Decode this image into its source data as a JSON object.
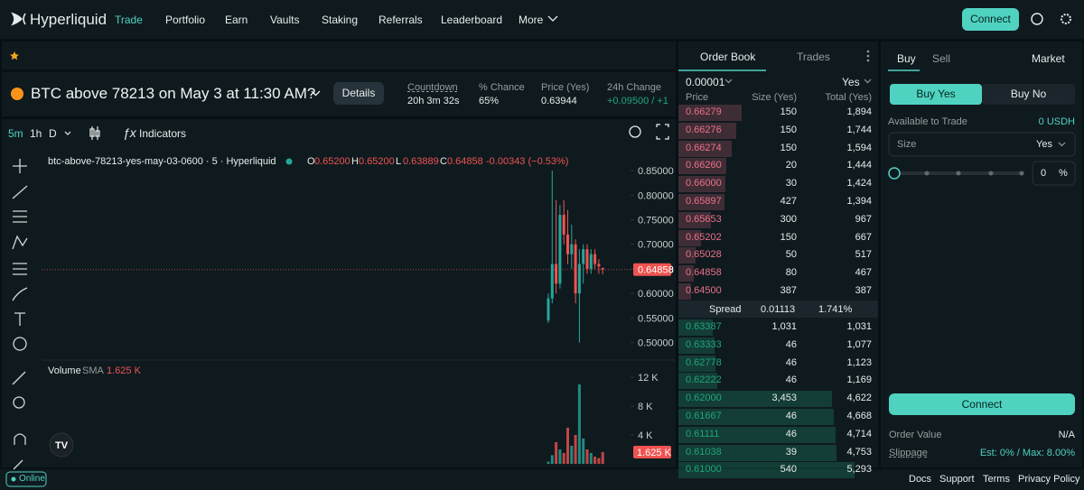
{
  "nav": {
    "logo": "Hyperliquid",
    "links": [
      "Trade",
      "Portfolio",
      "Earn",
      "Vaults",
      "Staking",
      "Referrals",
      "Leaderboard",
      "More"
    ],
    "connect": "Connect"
  },
  "market": {
    "title": "BTC above 78213 on May 3 at 11:30 AM?",
    "details": "Details",
    "stats": [
      {
        "label": "Countdown",
        "value": "20h 3m 32s"
      },
      {
        "label": "% Chance",
        "value": "65%"
      },
      {
        "label": "Price (Yes)",
        "value": "0.63944"
      },
      {
        "label": "24h Change",
        "value": "+0.09500 / +1"
      }
    ]
  },
  "toolbar": {
    "intervals": [
      "5m",
      "1h",
      "D"
    ],
    "indicators": "Indicators"
  },
  "chart_data": {
    "type": "candlestick",
    "title": "btc-above-78213-yes-may-03-0600 · 5 · Hyperliquid",
    "ohlc": [
      {
        "key": "O",
        "value": "0.65200"
      },
      {
        "key": "H",
        "value": "0.65200"
      },
      {
        "key": "L",
        "value": "0.63889"
      },
      {
        "key": "C",
        "value": "0.64858"
      }
    ],
    "change": "-0.00343 (−0.53%)",
    "open": [
      0.545,
      0.59,
      0.66,
      0.62,
      0.76,
      0.72,
      0.68,
      0.7,
      0.6,
      0.66,
      0.69,
      0.65,
      0.68,
      0.66,
      0.652
    ],
    "high": [
      0.6,
      0.85,
      0.79,
      0.78,
      0.79,
      0.77,
      0.74,
      0.71,
      0.69,
      0.7,
      0.7,
      0.69,
      0.69,
      0.67,
      0.652
    ],
    "low": [
      0.54,
      0.58,
      0.6,
      0.61,
      0.7,
      0.66,
      0.65,
      0.58,
      0.5,
      0.62,
      0.64,
      0.64,
      0.65,
      0.64,
      0.63889
    ],
    "close": [
      0.59,
      0.66,
      0.62,
      0.76,
      0.72,
      0.68,
      0.7,
      0.6,
      0.66,
      0.69,
      0.65,
      0.68,
      0.66,
      0.655,
      0.64858
    ],
    "up_color": "#26a69a",
    "down_color": "#ef5350",
    "ylim": [
      0.47,
      0.885
    ],
    "yticks": [
      {
        "value": 0.85,
        "label": "0.85000"
      },
      {
        "value": 0.8,
        "label": "0.80000"
      },
      {
        "value": 0.75,
        "label": "0.75000"
      },
      {
        "value": 0.7,
        "label": "0.70000"
      },
      {
        "value": 0.65,
        "label": "0.65000"
      },
      {
        "value": 0.6,
        "label": "0.60000"
      },
      {
        "value": 0.55,
        "label": "0.55000"
      },
      {
        "value": 0.5,
        "label": "0.50000"
      }
    ],
    "last_price": {
      "value": 0.64858,
      "label": "0.64858"
    },
    "volume": {
      "title": "Volume",
      "sma": "SMA",
      "last": {
        "value": 1625,
        "label": "1.625 K"
      },
      "values": [
        300,
        1200,
        3000,
        2000,
        1500,
        5000,
        2500,
        4000,
        11000,
        3500,
        2000,
        1500,
        1000,
        800,
        1625
      ],
      "ylim": [
        0,
        14000
      ],
      "yticks": [
        {
          "value": 12000,
          "label": "12 K"
        },
        {
          "value": 8000,
          "label": "8 K"
        },
        {
          "value": 4000,
          "label": "4 K"
        }
      ]
    }
  },
  "order_book": {
    "tabs": [
      "Order Book",
      "Trades"
    ],
    "tick": "0.00001",
    "side": "Yes",
    "columns": [
      "Price",
      "Size (Yes)",
      "Total (Yes)"
    ],
    "asks": [
      [
        "0.66279",
        "150",
        "1,894"
      ],
      [
        "0.66276",
        "150",
        "1,744"
      ],
      [
        "0.66274",
        "150",
        "1,594"
      ],
      [
        "0.66260",
        "20",
        "1,444"
      ],
      [
        "0.66000",
        "30",
        "1,424"
      ],
      [
        "0.65897",
        "427",
        "1,394"
      ],
      [
        "0.65653",
        "300",
        "967"
      ],
      [
        "0.65202",
        "150",
        "667"
      ],
      [
        "0.65028",
        "50",
        "517"
      ],
      [
        "0.64858",
        "80",
        "467"
      ],
      [
        "0.64500",
        "387",
        "387"
      ]
    ],
    "spread": [
      "Spread",
      "0.01113",
      "1.741%"
    ],
    "bids": [
      [
        "0.63387",
        "1,031",
        "1,031"
      ],
      [
        "0.63333",
        "46",
        "1,077"
      ],
      [
        "0.62778",
        "46",
        "1,123"
      ],
      [
        "0.62222",
        "46",
        "1,169"
      ],
      [
        "0.62000",
        "3,453",
        "4,622"
      ],
      [
        "0.61667",
        "46",
        "4,668"
      ],
      [
        "0.61111",
        "46",
        "4,714"
      ],
      [
        "0.61038",
        "39",
        "4,753"
      ],
      [
        "0.61000",
        "540",
        "5,293"
      ]
    ]
  },
  "trade": {
    "tabs": [
      "Buy",
      "Sell"
    ],
    "order_type": "Market",
    "buttons": [
      "Buy Yes",
      "Buy No"
    ],
    "available_label": "Available to Trade",
    "available_value": "0 USDH",
    "size_label": "Size",
    "size_unit": "Yes",
    "percent": "0",
    "percent_sign": "%",
    "connect": "Connect",
    "order_value_label": "Order Value",
    "order_value": "N/A",
    "slippage_label": "Slippage",
    "slippage": "Est: 0% / Max: 8.00%"
  },
  "footer": {
    "status": "Online",
    "links": [
      "Docs",
      "Support",
      "Terms",
      "Privacy Policy"
    ]
  }
}
